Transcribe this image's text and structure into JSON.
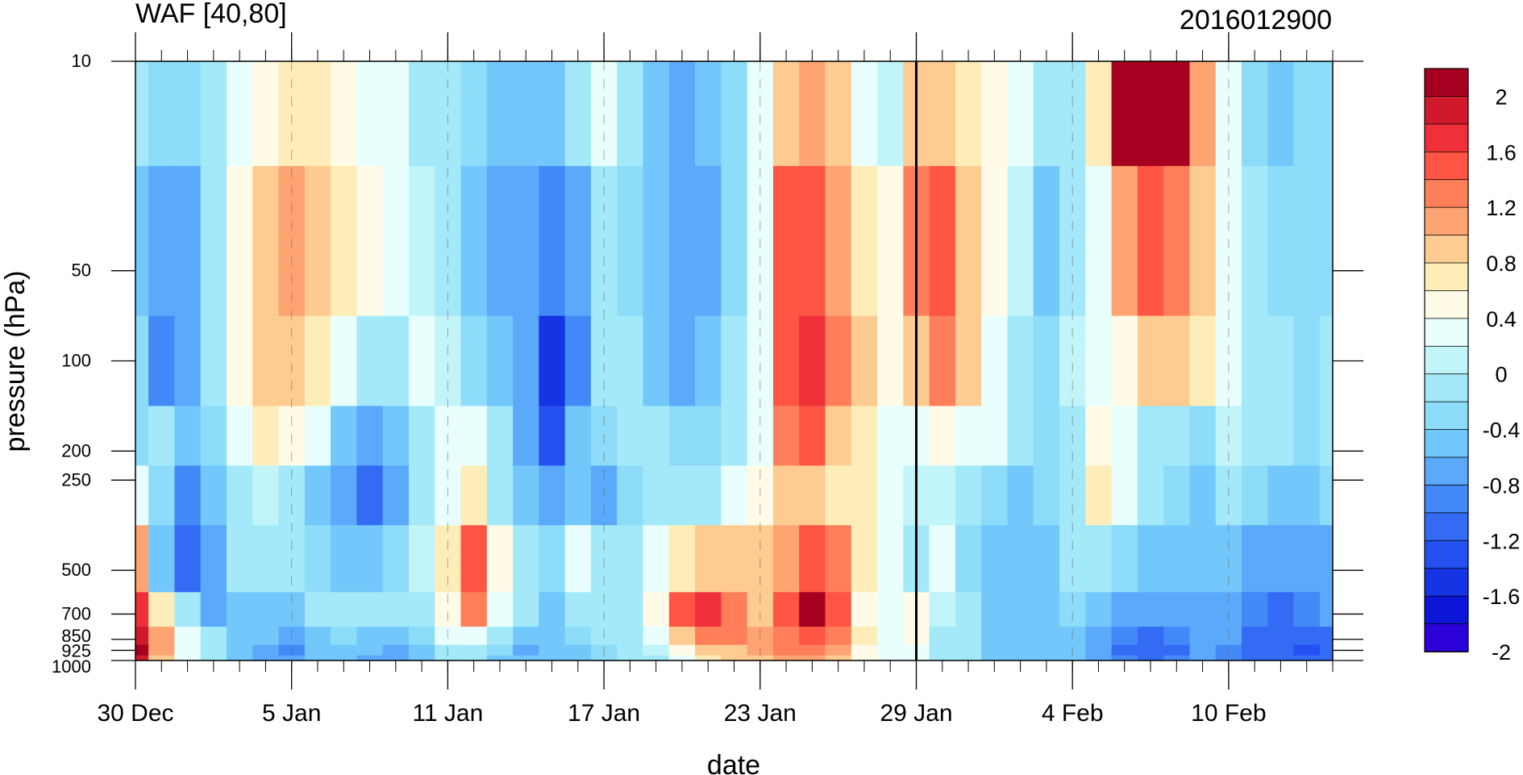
{
  "chart_data": {
    "type": "heatmap",
    "title": "WAF [40,80]",
    "subtitle": "2016012900",
    "xlabel": "date",
    "ylabel": "pressure (hPa)",
    "x_ticks": [
      "30 Dec",
      "5 Jan",
      "11 Jan",
      "17 Jan",
      "23 Jan",
      "29 Jan",
      "4 Feb",
      "10 Feb"
    ],
    "y_ticks": [
      10,
      50,
      100,
      200,
      250,
      500,
      700,
      850,
      925,
      1000
    ],
    "y_scale": "log",
    "ylim": [
      1000,
      10
    ],
    "x_range": [
      "30 Dec",
      "14 Feb"
    ],
    "marked_date": "29 Jan",
    "colorbar": {
      "labels": [
        "2",
        "1.6",
        "1.2",
        "0.8",
        "0.4",
        "0",
        "-0.4",
        "-0.8",
        "-1.2",
        "-1.6",
        "-2"
      ],
      "colors": [
        "#a5001f",
        "#d01a2c",
        "#f03038",
        "#ff5545",
        "#ff7f5a",
        "#fea473",
        "#fecb90",
        "#feedb8",
        "#fffbe6",
        "#e8fffe",
        "#c2f5f9",
        "#a3e9f9",
        "#8ddcf9",
        "#73c8fb",
        "#5aa9fb",
        "#4389f8",
        "#336bf4",
        "#2550f0",
        "#1534e3",
        "#0b16d8",
        "#2c00d9"
      ]
    },
    "pressure_levels": [
      10,
      50,
      100,
      200,
      250,
      500,
      700,
      850,
      925,
      1000
    ],
    "days": [
      "30 Dec",
      "31 Dec",
      "1 Jan",
      "2 Jan",
      "3 Jan",
      "4 Jan",
      "5 Jan",
      "6 Jan",
      "7 Jan",
      "8 Jan",
      "9 Jan",
      "10 Jan",
      "11 Jan",
      "12 Jan",
      "13 Jan",
      "14 Jan",
      "15 Jan",
      "16 Jan",
      "17 Jan",
      "18 Jan",
      "19 Jan",
      "20 Jan",
      "21 Jan",
      "22 Jan",
      "23 Jan",
      "24 Jan",
      "25 Jan",
      "26 Jan",
      "27 Jan",
      "28 Jan",
      "29 Jan",
      "30 Jan",
      "31 Jan",
      "1 Feb",
      "2 Feb",
      "3 Feb",
      "4 Feb",
      "5 Feb",
      "6 Feb",
      "7 Feb",
      "8 Feb",
      "9 Feb",
      "10 Feb",
      "11 Feb",
      "12 Feb",
      "13 Feb",
      "14 Feb"
    ],
    "values": [
      [
        -0.3,
        -0.35,
        -0.4,
        -0.1,
        0.3,
        0.5,
        0.6,
        0.6,
        0.5,
        0.3,
        0.1,
        -0.1,
        -0.3,
        -0.45,
        -0.55,
        -0.6,
        -0.55,
        -0.3,
        0.1,
        -0.3,
        -0.55,
        -0.7,
        -0.6,
        -0.35,
        0.1,
        0.8,
        1.1,
        0.9,
        0.3,
        -0.05,
        0.8,
        0.9,
        0.7,
        0.5,
        0.3,
        -0.1,
        -0.2,
        0.6,
        2.0,
        2.0,
        2.0,
        1.0,
        0.1,
        -0.4,
        -0.5,
        -0.45,
        -0.4
      ],
      [
        -0.5,
        -0.9,
        -0.8,
        -0.2,
        0.5,
        0.9,
        1.0,
        0.8,
        0.6,
        0.4,
        0.1,
        -0.05,
        -0.3,
        -0.6,
        -0.7,
        -0.8,
        -1.0,
        -0.8,
        -0.3,
        -0.45,
        -0.65,
        -0.9,
        -0.75,
        -0.45,
        0.2,
        1.4,
        1.5,
        1.1,
        0.7,
        0.4,
        1.2,
        1.4,
        0.9,
        0.4,
        0.0,
        -0.5,
        -0.1,
        0.2,
        1.0,
        1.4,
        1.1,
        0.9,
        0.3,
        -0.2,
        -0.45,
        -0.4,
        -0.35
      ],
      [
        -0.45,
        -0.95,
        -0.75,
        -0.2,
        0.4,
        0.8,
        0.9,
        0.7,
        0.3,
        -0.1,
        -0.1,
        0.1,
        0.0,
        -0.4,
        -0.6,
        -0.9,
        -1.5,
        -1.0,
        -0.3,
        -0.3,
        -0.5,
        -0.7,
        -0.5,
        -0.3,
        0.3,
        1.4,
        1.6,
        1.2,
        0.8,
        0.4,
        0.9,
        1.2,
        0.8,
        0.3,
        -0.1,
        -0.4,
        0.0,
        0.3,
        0.5,
        0.8,
        0.9,
        0.6,
        0.2,
        -0.1,
        -0.3,
        -0.35,
        -0.3
      ],
      [
        -0.35,
        -0.2,
        -0.6,
        -0.35,
        0.3,
        0.6,
        0.5,
        0.1,
        -0.5,
        -0.9,
        -0.6,
        -0.2,
        0.1,
        0.3,
        -0.3,
        -0.8,
        -1.4,
        -0.6,
        -0.35,
        -0.2,
        -0.3,
        -0.4,
        -0.4,
        -0.2,
        0.3,
        1.2,
        1.4,
        0.9,
        0.6,
        0.2,
        0.3,
        0.5,
        0.3,
        0.1,
        -0.2,
        -0.35,
        -0.1,
        0.5,
        0.3,
        -0.2,
        -0.3,
        -0.35,
        0.0,
        -0.2,
        -0.3,
        -0.35,
        -0.25
      ],
      [
        0.3,
        -0.4,
        -0.95,
        -0.5,
        -0.1,
        0.0,
        -0.2,
        -0.5,
        -0.9,
        -1.2,
        -0.8,
        -0.3,
        0.3,
        0.6,
        -0.2,
        -0.5,
        -0.7,
        -0.6,
        -0.8,
        -0.4,
        -0.2,
        -0.2,
        -0.1,
        0.1,
        0.4,
        0.8,
        0.9,
        0.7,
        0.6,
        0.3,
        -0.05,
        0.0,
        -0.3,
        -0.45,
        -0.5,
        -0.4,
        -0.1,
        0.6,
        0.2,
        -0.3,
        -0.4,
        -0.5,
        -0.1,
        -0.4,
        -0.5,
        -0.5,
        -0.45
      ],
      [
        1.0,
        -0.5,
        -1.3,
        -0.8,
        -0.3,
        -0.3,
        -0.3,
        -0.4,
        -0.5,
        -0.6,
        -0.4,
        0.0,
        0.6,
        1.4,
        0.4,
        -0.3,
        -0.4,
        0.1,
        -0.3,
        -0.3,
        0.2,
        0.7,
        0.9,
        0.9,
        0.9,
        1.0,
        1.5,
        1.2,
        0.6,
        0.1,
        -0.2,
        0.1,
        -0.4,
        -0.55,
        -0.6,
        -0.5,
        -0.3,
        -0.2,
        -0.35,
        -0.5,
        -0.55,
        -0.6,
        -0.6,
        -0.7,
        -0.75,
        -0.8,
        -0.8
      ],
      [
        1.6,
        0.6,
        -0.2,
        -0.7,
        -0.6,
        -0.5,
        -0.5,
        -0.3,
        -0.2,
        -0.25,
        -0.3,
        -0.1,
        0.5,
        1.2,
        0.3,
        -0.3,
        -0.5,
        -0.3,
        -0.2,
        -0.2,
        0.4,
        1.3,
        1.6,
        1.2,
        0.9,
        1.3,
        2.0,
        1.4,
        0.5,
        0.2,
        0.5,
        -0.05,
        -0.3,
        -0.5,
        -0.6,
        -0.6,
        -0.4,
        -0.5,
        -0.7,
        -0.9,
        -0.8,
        -0.8,
        -0.9,
        -1.0,
        -1.1,
        -1.0,
        -0.9
      ],
      [
        1.9,
        1.0,
        0.2,
        -0.3,
        -0.5,
        -0.6,
        -0.9,
        -0.5,
        -0.4,
        -0.5,
        -0.6,
        -0.4,
        0.1,
        0.2,
        -0.3,
        -0.6,
        -0.5,
        -0.4,
        -0.3,
        -0.2,
        0.2,
        0.9,
        1.2,
        1.1,
        1.0,
        1.2,
        1.4,
        1.2,
        0.6,
        0.1,
        0.4,
        -0.1,
        -0.3,
        -0.5,
        -0.6,
        -0.6,
        -0.5,
        -0.7,
        -1.0,
        -1.2,
        -1.0,
        -0.8,
        -0.9,
        -1.1,
        -1.2,
        -1.3,
        -1.2
      ],
      [
        2.0,
        1.0,
        0.3,
        -0.3,
        -0.6,
        -0.8,
        -1.0,
        -0.6,
        -0.5,
        -0.6,
        -0.8,
        -0.5,
        -0.1,
        -0.2,
        -0.4,
        -0.7,
        -0.6,
        -0.5,
        -0.4,
        -0.3,
        0.0,
        0.5,
        0.8,
        0.9,
        1.0,
        1.1,
        1.2,
        1.0,
        0.5,
        0.1,
        0.3,
        -0.1,
        -0.3,
        -0.5,
        -0.6,
        -0.5,
        -0.5,
        -0.8,
        -1.1,
        -1.2,
        -1.1,
        -0.9,
        -1.0,
        -1.2,
        -1.3,
        -1.4,
        -1.3
      ],
      [
        1.8,
        0.8,
        0.2,
        -0.3,
        -0.5,
        -0.7,
        -0.9,
        -0.6,
        -0.6,
        -0.7,
        -0.8,
        -0.5,
        -0.2,
        -0.3,
        -0.5,
        -0.6,
        -0.5,
        -0.5,
        -0.4,
        -0.3,
        -0.1,
        0.3,
        0.6,
        0.8,
        0.9,
        1.0,
        1.0,
        0.9,
        0.4,
        0.1,
        0.2,
        -0.1,
        -0.3,
        -0.5,
        -0.6,
        -0.5,
        -0.5,
        -0.8,
        -1.0,
        -1.1,
        -1.0,
        -0.9,
        -1.0,
        -1.1,
        -1.2,
        -1.2,
        -1.1
      ]
    ]
  }
}
